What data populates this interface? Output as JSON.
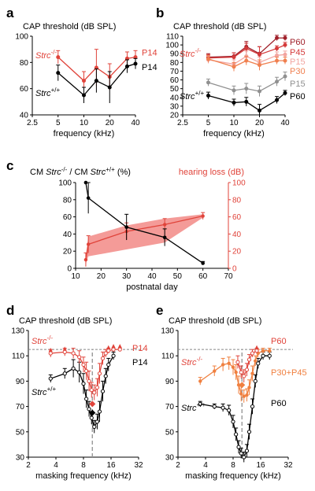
{
  "chart_data": [
    {
      "panel": "a",
      "type": "line",
      "title": "CAP threshold (dB SPL)",
      "xlabel": "frequency (kHz)",
      "xscale": "log2",
      "xlim": [
        2.5,
        40
      ],
      "ylim": [
        40,
        100
      ],
      "xticks": [
        "2.5",
        "5",
        "10",
        "20",
        "40"
      ],
      "yticks": [
        "40",
        "60",
        "80",
        "100"
      ],
      "x": [
        5,
        10,
        14,
        20,
        32,
        40
      ],
      "series": [
        {
          "name": "Strc-/-",
          "label_main": "Strc",
          "label_sup": "-/-",
          "end_label": "P14",
          "color": "#e0433a",
          "values": [
            84,
            66,
            76,
            69,
            83,
            84
          ],
          "err": [
            5,
            7,
            14,
            10,
            5,
            5
          ]
        },
        {
          "name": "Strc+/+",
          "label_main": "Strc",
          "label_sup": "+/+",
          "end_label": "P14",
          "color": "#000000",
          "values": [
            72,
            55,
            66,
            61,
            77,
            79
          ],
          "err": [
            6,
            6,
            9,
            12,
            5,
            4
          ]
        }
      ]
    },
    {
      "panel": "b",
      "type": "line",
      "title": "CAP threshold (dB SPL)",
      "xlabel": "frequency (kHz)",
      "xscale": "log2",
      "xlim": [
        2.5,
        40
      ],
      "ylim": [
        20,
        110
      ],
      "xticks": [
        "2.5",
        "5",
        "10",
        "20",
        "40"
      ],
      "yticks": [
        "20",
        "30",
        "40",
        "50",
        "60",
        "70",
        "80",
        "90",
        "100",
        "110"
      ],
      "x": [
        5,
        10,
        14,
        20,
        32,
        40
      ],
      "group_labels": [
        {
          "main": "Strc",
          "sup": "-/-",
          "color": "#e0433a"
        },
        {
          "main": "Strc",
          "sup": "+/+",
          "color": "#000000"
        }
      ],
      "series": [
        {
          "name": "P60",
          "color": "#a0202a",
          "values": [
            86,
            87,
            98,
            90,
            108,
            108
          ],
          "err": [
            4,
            4,
            6,
            8,
            3,
            3
          ]
        },
        {
          "name": "P45",
          "color": "#d43a3a",
          "values": [
            85,
            86,
            96,
            89,
            96,
            100
          ],
          "err": [
            4,
            5,
            6,
            9,
            3,
            3
          ]
        },
        {
          "name": "P15",
          "color": "#f2a5a0",
          "values": [
            83,
            78,
            87,
            80,
            88,
            89
          ],
          "err": [
            4,
            5,
            6,
            6,
            4,
            4
          ]
        },
        {
          "name": "P30",
          "color": "#f08050",
          "values": [
            84,
            75,
            82,
            77,
            82,
            82
          ],
          "err": [
            4,
            5,
            5,
            6,
            4,
            4
          ]
        },
        {
          "name": "P15",
          "color": "#909090",
          "values": [
            57,
            48,
            50,
            47,
            58,
            64
          ],
          "err": [
            4,
            5,
            6,
            6,
            5,
            5
          ]
        },
        {
          "name": "P60",
          "color": "#000000",
          "values": [
            42,
            34,
            35,
            25,
            37,
            45
          ],
          "err": [
            4,
            4,
            5,
            7,
            4,
            3
          ]
        }
      ]
    },
    {
      "panel": "c",
      "type": "line",
      "title_left_a": "CM ",
      "title_left_b": "Strc",
      "title_left_c": "-/-",
      "title_left_d": " / CM ",
      "title_left_e": "Strc",
      "title_left_f": "+/+",
      "title_left_g": " (%)",
      "title_right": "hearing loss (dB)",
      "xlabel": "postnatal day",
      "xlim": [
        10,
        70
      ],
      "ylim": [
        0,
        100
      ],
      "xticks": [
        "10",
        "20",
        "30",
        "40",
        "50",
        "60",
        "70"
      ],
      "yticks": [
        "0",
        "20",
        "40",
        "60",
        "80",
        "100"
      ],
      "series": [
        {
          "name": "CM ratio",
          "color": "#000000",
          "x": [
            14,
            15,
            30,
            45,
            60
          ],
          "values": [
            100,
            82,
            48,
            36,
            6
          ],
          "err": [
            0,
            18,
            15,
            10,
            2
          ]
        },
        {
          "name": "hearing loss",
          "color": "#e0433a",
          "x": [
            14,
            15,
            30,
            45,
            60
          ],
          "values": [
            10,
            28,
            43,
            51,
            61
          ],
          "err": [
            8,
            10,
            10,
            7,
            4
          ],
          "band_upper": [
            15,
            37,
            50,
            58,
            63
          ],
          "band_lower": [
            5,
            14,
            22,
            30,
            59
          ]
        }
      ]
    },
    {
      "panel": "d",
      "type": "line",
      "title": "CAP threshold (dB SPL)",
      "xlabel": "masking frequency (kHz)",
      "xscale": "log2",
      "xlim": [
        2,
        32
      ],
      "ylim": [
        30,
        130
      ],
      "xticks": [
        "2",
        "4",
        "8",
        "16",
        "32"
      ],
      "yticks": [
        "30",
        "50",
        "70",
        "90",
        "110",
        "130"
      ],
      "max_level": 115,
      "probe_frequency": 10,
      "series": [
        {
          "name": "Strc-/-",
          "label_main": "Strc",
          "label_sup": "-/-",
          "end_label": "P14",
          "color": "#e0433a",
          "x": [
            3.5,
            5,
            6.2,
            7.2,
            8,
            8.6,
            9.2,
            9.8,
            10.5,
            11.3,
            12,
            13,
            14,
            15,
            17,
            20
          ],
          "values": [
            112,
            113,
            112,
            109,
            103,
            98,
            90,
            83,
            81,
            85,
            96,
            108,
            112,
            114,
            115,
            115
          ],
          "err": [
            3,
            3,
            4,
            5,
            6,
            7,
            8,
            6,
            6,
            7,
            8,
            5,
            3,
            2,
            1,
            1
          ],
          "probe": 72,
          "probe_err": 2
        },
        {
          "name": "Strc+/+",
          "label_main": "Strc",
          "label_sup": "+/+",
          "end_label": "P14",
          "color": "#000000",
          "x": [
            3.5,
            5,
            6.2,
            7.2,
            8,
            8.6,
            9.2,
            9.8,
            10.5,
            11.3,
            12,
            13,
            14,
            15,
            17
          ],
          "values": [
            92,
            96,
            100,
            97,
            88,
            76,
            68,
            61,
            54,
            58,
            66,
            82,
            94,
            103,
            110
          ],
          "err": [
            3,
            4,
            7,
            8,
            8,
            7,
            6,
            5,
            5,
            6,
            8,
            8,
            6,
            5,
            3
          ],
          "probe": 65,
          "probe_err": 2
        }
      ]
    },
    {
      "panel": "e",
      "type": "line",
      "title": "CAP threshold (dB SPL)",
      "xlabel": "masking frequency (kHz)",
      "xscale": "log2",
      "xlim": [
        2,
        32
      ],
      "ylim": [
        30,
        130
      ],
      "xticks": [
        "2",
        "4",
        "8",
        "16",
        "32"
      ],
      "yticks": [
        "30",
        "50",
        "70",
        "90",
        "110",
        "130"
      ],
      "max_level": 115,
      "probe_frequency": 10,
      "series": [
        {
          "name": "P60",
          "end_label": "P60",
          "color": "#e0433a",
          "x": [
            9,
            9.8,
            10.5,
            11.3,
            12,
            13,
            14.5
          ],
          "values": [
            105,
            97,
            94,
            99,
            107,
            112,
            114
          ],
          "err": [
            5,
            5,
            5,
            5,
            4,
            3,
            2
          ]
        },
        {
          "name": "P30+P45",
          "end_label": "P30+P45",
          "label_main": "Strc",
          "label_sup": "-/-",
          "color": "#f08040",
          "x": [
            3.5,
            5,
            6.2,
            7.2,
            8,
            8.6,
            9.2,
            9.8,
            10.5,
            11.3,
            12,
            13,
            14,
            15,
            17,
            20
          ],
          "values": [
            90,
            98,
            103,
            104,
            101,
            97,
            87,
            80,
            78,
            79,
            85,
            96,
            106,
            112,
            114,
            114
          ],
          "err": [
            3,
            4,
            5,
            5,
            6,
            6,
            7,
            6,
            5,
            5,
            6,
            6,
            4,
            3,
            2,
            2
          ],
          "probe": 87,
          "probe_err": 2
        },
        {
          "name": "P60 Strc+/+",
          "end_label": "P60",
          "label_main": "Strc",
          "label_sup": "+/+",
          "color": "#000000",
          "x": [
            3.5,
            5,
            6.2,
            7.2,
            8,
            8.6,
            9.2,
            9.8,
            10.5,
            11.3,
            12,
            13,
            14,
            15,
            17,
            20
          ],
          "values": [
            72,
            70,
            69,
            67,
            58,
            48,
            38,
            33,
            30,
            35,
            50,
            70,
            90,
            104,
            110,
            110
          ],
          "err": [
            2,
            2,
            3,
            4,
            5,
            5,
            5,
            4,
            4,
            5,
            6,
            6,
            5,
            4,
            3,
            3
          ]
        }
      ]
    }
  ]
}
